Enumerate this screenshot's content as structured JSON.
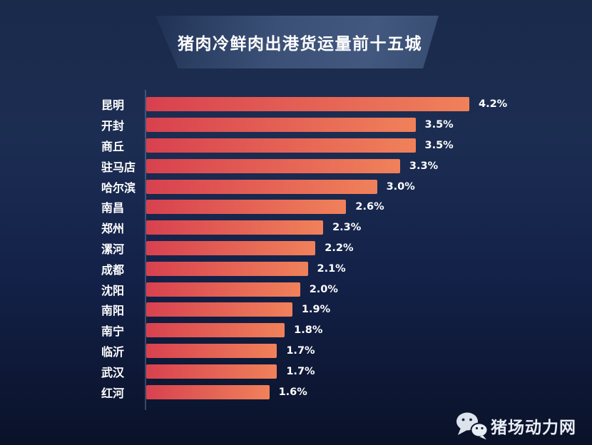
{
  "banner": {
    "title": "猪肉冷鲜肉出港货运量前十五城"
  },
  "watermark": {
    "brand": "猪场动力网",
    "icon": "wechat-icon"
  },
  "colors": {
    "background_top": "#1a2a4b",
    "background_bottom": "#0a1229",
    "banner_face": "#3c5278",
    "bar_gradient_start": "#d8414f",
    "bar_gradient_end": "#f0815a",
    "axis_line": "rgba(162,183,220,0.30)",
    "text": "#ffffff"
  },
  "chart_data": {
    "type": "bar",
    "orientation": "horizontal",
    "title": "猪肉冷鲜肉出港货运量前十五城",
    "categories": [
      "昆明",
      "开封",
      "商丘",
      "驻马店",
      "哈尔滨",
      "南昌",
      "郑州",
      "漯河",
      "成都",
      "沈阳",
      "南阳",
      "南宁",
      "临沂",
      "武汉",
      "红河"
    ],
    "values": [
      4.2,
      3.5,
      3.5,
      3.3,
      3.0,
      2.6,
      2.3,
      2.2,
      2.1,
      2.0,
      1.9,
      1.8,
      1.7,
      1.7,
      1.6
    ],
    "value_labels": [
      "4.2%",
      "3.5%",
      "3.5%",
      "3.3%",
      "3.0%",
      "2.6%",
      "2.3%",
      "2.2%",
      "2.1%",
      "2.0%",
      "1.9%",
      "1.8%",
      "1.7%",
      "1.7%",
      "1.6%"
    ],
    "xlabel": "",
    "ylabel": "",
    "xlim": [
      0,
      4.2
    ],
    "grid": false,
    "legend": false,
    "sort": "descending",
    "unit": "%"
  }
}
